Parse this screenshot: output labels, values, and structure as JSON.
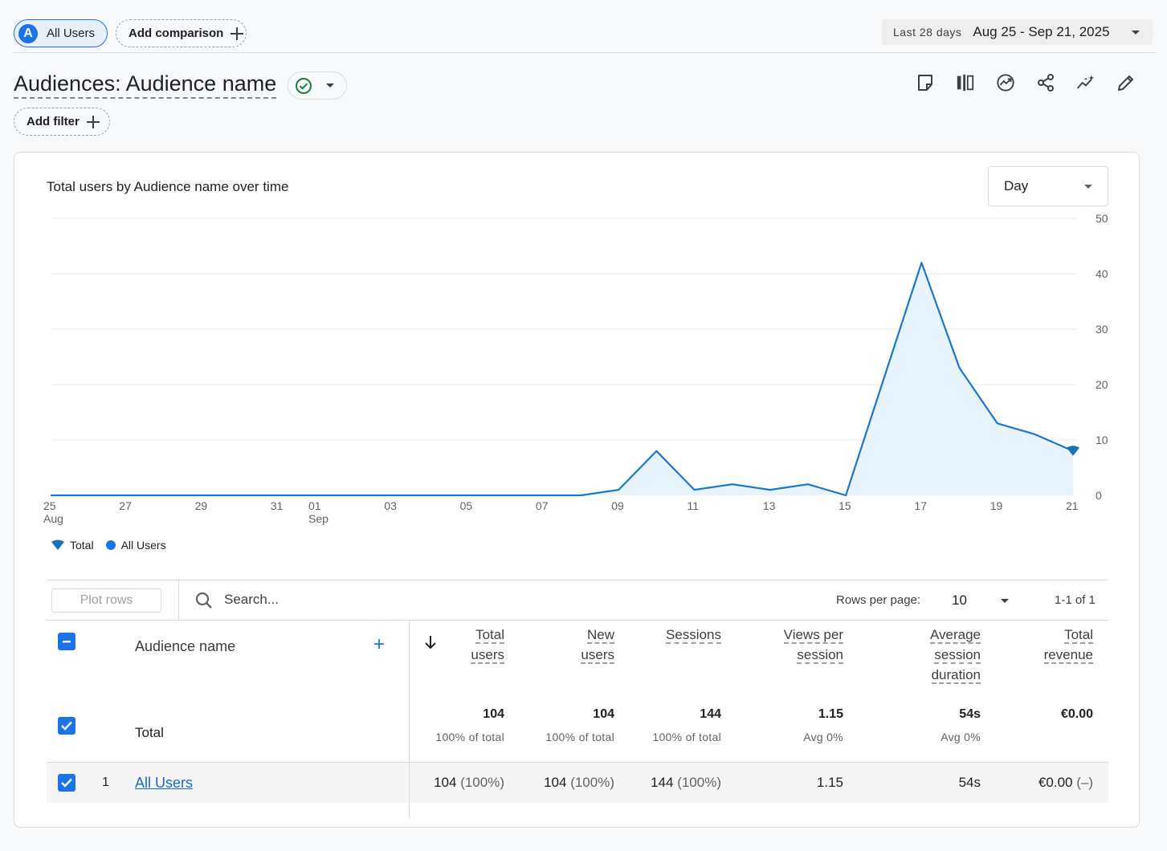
{
  "header": {
    "segment_avatar": "A",
    "segment_label": "All Users",
    "add_comparison": "Add comparison",
    "date_prefix": "Last 28 days",
    "date_range": "Aug 25 - Sep 21, 2025"
  },
  "page": {
    "title": "Audiences: Audience name",
    "add_filter": "Add filter",
    "toolbar_icons": [
      "insights-note-icon",
      "compare-icon",
      "trend-icon",
      "share-icon",
      "anomaly-icon",
      "edit-icon"
    ]
  },
  "chart_data": {
    "type": "area",
    "title": "Total users by Audience name over time",
    "granularity": "Day",
    "x": [
      "08-25",
      "08-26",
      "08-27",
      "08-28",
      "08-29",
      "08-30",
      "08-31",
      "09-01",
      "09-02",
      "09-03",
      "09-04",
      "09-05",
      "09-06",
      "09-07",
      "09-08",
      "09-09",
      "09-10",
      "09-11",
      "09-12",
      "09-13",
      "09-14",
      "09-15",
      "09-16",
      "09-17",
      "09-18",
      "09-19",
      "09-20",
      "09-21"
    ],
    "x_tick_labels": [
      {
        "day": "25",
        "month": "Aug",
        "index": 0
      },
      {
        "day": "27",
        "index": 2
      },
      {
        "day": "29",
        "index": 4
      },
      {
        "day": "31",
        "index": 6
      },
      {
        "day": "01",
        "month": "Sep",
        "index": 7
      },
      {
        "day": "03",
        "index": 9
      },
      {
        "day": "05",
        "index": 11
      },
      {
        "day": "07",
        "index": 13
      },
      {
        "day": "09",
        "index": 15
      },
      {
        "day": "11",
        "index": 17
      },
      {
        "day": "13",
        "index": 19
      },
      {
        "day": "15",
        "index": 21
      },
      {
        "day": "17",
        "index": 23
      },
      {
        "day": "19",
        "index": 25
      },
      {
        "day": "21",
        "index": 27
      }
    ],
    "series": [
      {
        "name": "All Users",
        "values": [
          0,
          0,
          0,
          0,
          0,
          0,
          0,
          0,
          0,
          0,
          0,
          0,
          0,
          0,
          0,
          1,
          8,
          1,
          2,
          1,
          2,
          0,
          21,
          42,
          23,
          13,
          11,
          8
        ]
      }
    ],
    "ylim": [
      0,
      50
    ],
    "yticks": [
      0,
      10,
      20,
      30,
      40,
      50
    ],
    "grid": true,
    "legend": [
      "Total",
      "All Users"
    ],
    "legend_position": "bottom-left",
    "colors": {
      "line": "#1976d2",
      "fill": "#e8f4fd",
      "marker": "#1a73b8"
    }
  },
  "table": {
    "plot_rows": "Plot rows",
    "search_placeholder": "Search...",
    "rows_per_page_label": "Rows per page:",
    "rows_per_page": "10",
    "pager": "1-1 of 1",
    "dimension_header": "Audience name",
    "metric_headers": [
      [
        "Total",
        "users"
      ],
      [
        "New",
        "users"
      ],
      [
        "Sessions"
      ],
      [
        "Views per",
        "session"
      ],
      [
        "Average",
        "session",
        "duration"
      ],
      [
        "Total",
        "revenue"
      ]
    ],
    "total_label": "Total",
    "totals": [
      {
        "value": "104",
        "sub": "100% of total"
      },
      {
        "value": "104",
        "sub": "100% of total"
      },
      {
        "value": "144",
        "sub": "100% of total"
      },
      {
        "value": "1.15",
        "sub": "Avg 0%"
      },
      {
        "value": "54s",
        "sub": "Avg 0%"
      },
      {
        "value": "€0.00",
        "sub": ""
      }
    ],
    "rows": [
      {
        "index": "1",
        "name": "All Users",
        "cells": [
          {
            "value": "104",
            "pct": "(100%)"
          },
          {
            "value": "104",
            "pct": "(100%)"
          },
          {
            "value": "144",
            "pct": "(100%)"
          },
          {
            "value": "1.15",
            "pct": ""
          },
          {
            "value": "54s",
            "pct": ""
          },
          {
            "value": "€0.00",
            "pct": "(–)"
          }
        ]
      }
    ]
  }
}
